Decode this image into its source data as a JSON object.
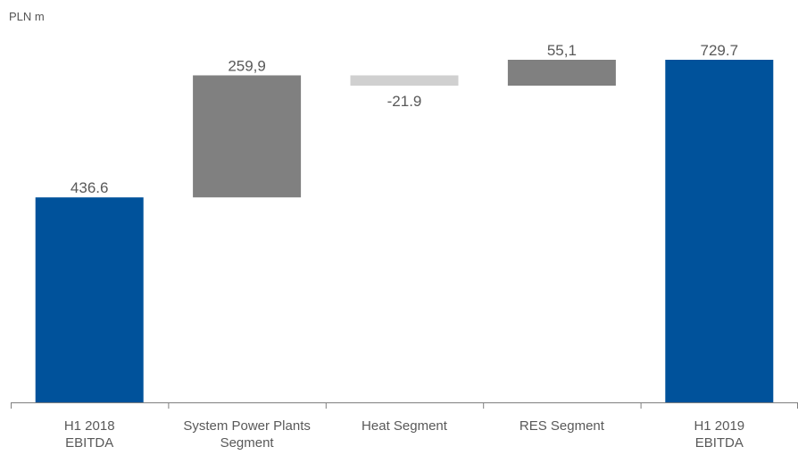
{
  "unit_label": "PLN m",
  "colors": {
    "total": "#00529B",
    "increase": "#808080",
    "decrease": "#D0D0D0",
    "axis": "#7F7F7F"
  },
  "chart_data": {
    "type": "bar",
    "subtype": "waterfall",
    "ylabel": "PLN m",
    "ylim": [
      0,
      730
    ],
    "grid": false,
    "categories": [
      [
        "H1 2018",
        "EBITDA"
      ],
      [
        "System Power Plants",
        "Segment"
      ],
      [
        "Heat Segment"
      ],
      [
        "RES Segment"
      ],
      [
        "H1 2019",
        "EBITDA"
      ]
    ],
    "bars": [
      {
        "kind": "total",
        "start": 0,
        "end": 436.6,
        "label": "436.6",
        "label_pos": "above"
      },
      {
        "kind": "increase",
        "start": 436.6,
        "end": 696.5,
        "label": "259,9",
        "label_pos": "above"
      },
      {
        "kind": "decrease",
        "start": 696.5,
        "end": 674.6,
        "label": "-21.9",
        "label_pos": "below"
      },
      {
        "kind": "increase",
        "start": 674.6,
        "end": 729.7,
        "label": "55,1",
        "label_pos": "above"
      },
      {
        "kind": "total",
        "start": 0,
        "end": 729.7,
        "label": "729.7",
        "label_pos": "above"
      }
    ]
  }
}
